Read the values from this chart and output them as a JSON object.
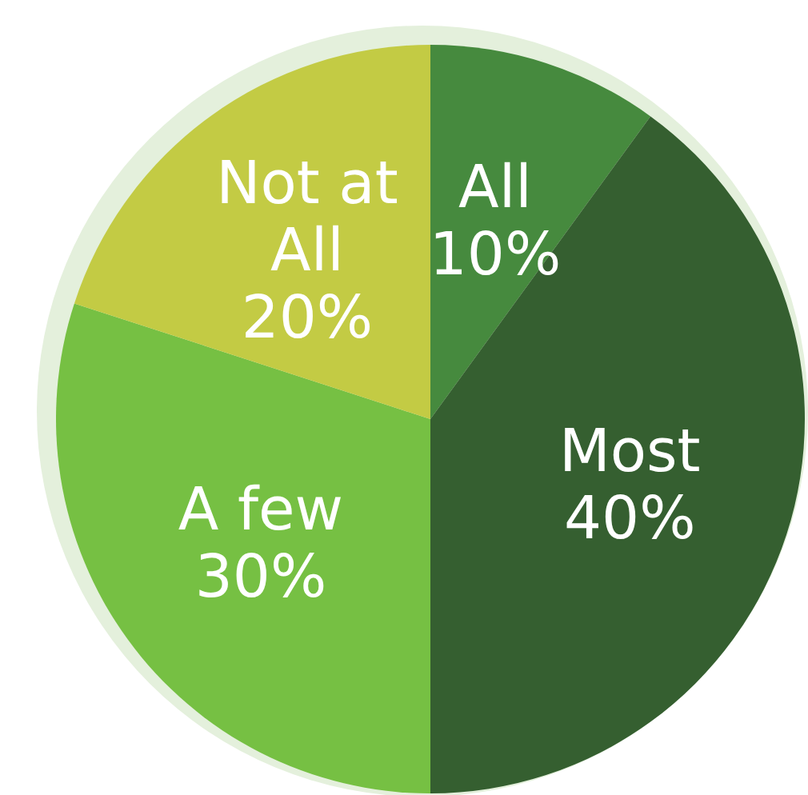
{
  "chart_data": {
    "type": "pie",
    "categories": [
      "All",
      "Most",
      "A few",
      "Not at All"
    ],
    "values": [
      10,
      40,
      30,
      20
    ],
    "colors": [
      "#468a3e",
      "#355f30",
      "#76c043",
      "#c3cb44"
    ],
    "value_labels": [
      "10%",
      "40%",
      "30%",
      "20%"
    ]
  }
}
